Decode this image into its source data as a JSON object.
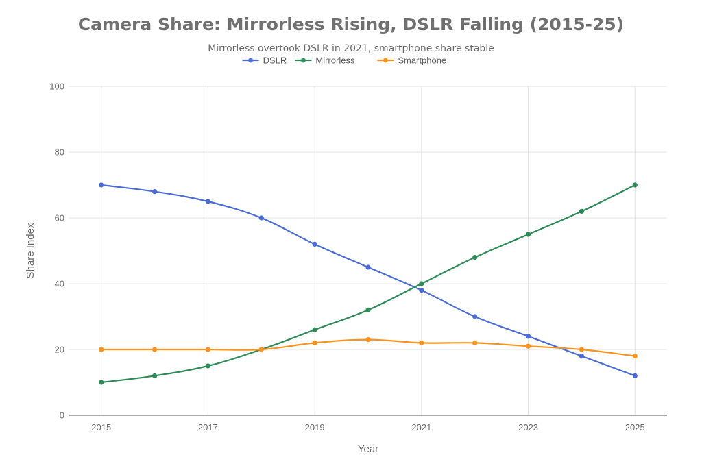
{
  "chart_data": {
    "type": "line",
    "title": "Camera Share: Mirrorless Rising, DSLR Falling (2015-25)",
    "subtitle": "Mirrorless overtook DSLR in 2021, smartphone share stable",
    "xlabel": "Year",
    "ylabel": "Share Index",
    "x": [
      2015,
      2016,
      2017,
      2018,
      2019,
      2020,
      2021,
      2022,
      2023,
      2024,
      2025
    ],
    "x_ticks": [
      "2015",
      "2017",
      "2019",
      "2021",
      "2023",
      "2025"
    ],
    "y_ticks": [
      "0",
      "20",
      "40",
      "60",
      "80",
      "100"
    ],
    "ylim": [
      0,
      100
    ],
    "xlim": [
      2014.4,
      2025.6
    ],
    "grid": true,
    "legend_position": "top-center",
    "series": [
      {
        "name": "DSLR",
        "color": "#4a6cd4",
        "values": [
          70,
          68,
          65,
          60,
          52,
          45,
          38,
          30,
          24,
          18,
          12
        ]
      },
      {
        "name": "Mirrorless",
        "color": "#2e8b57",
        "values": [
          10,
          12,
          15,
          20,
          26,
          32,
          40,
          48,
          55,
          62,
          70
        ]
      },
      {
        "name": "Smartphone",
        "color": "#f7931e",
        "values": [
          20,
          20,
          20,
          20,
          22,
          23,
          22,
          22,
          21,
          20,
          18
        ]
      }
    ]
  }
}
